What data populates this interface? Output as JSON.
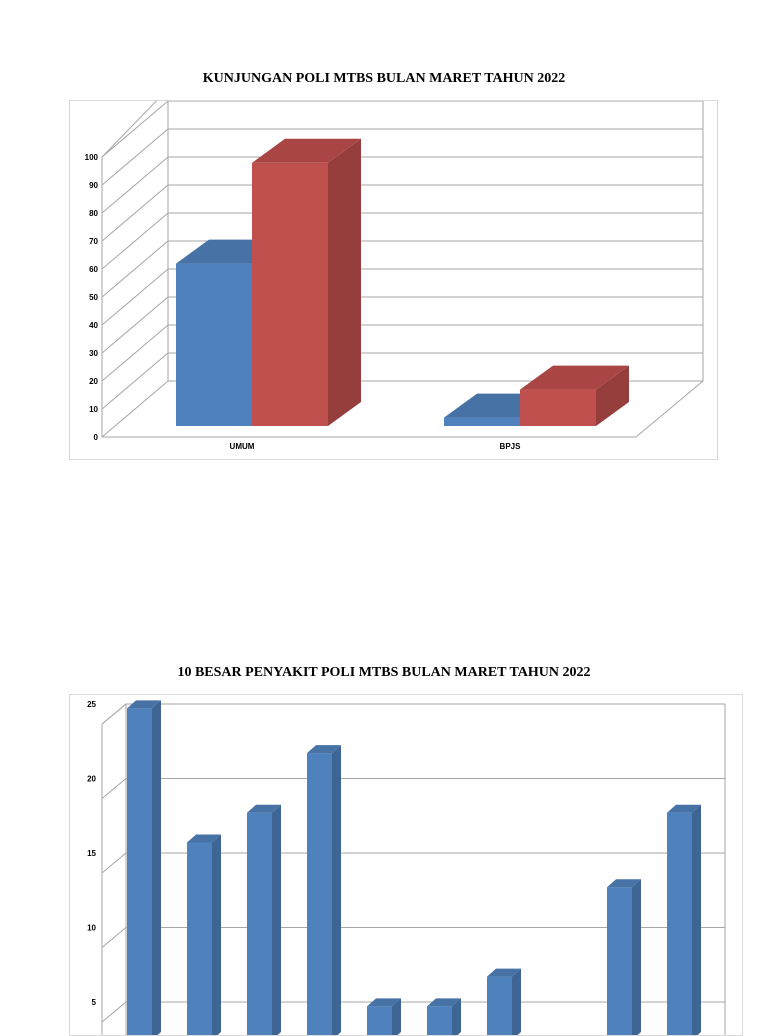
{
  "chart_data": [
    {
      "type": "bar",
      "title": "KUNJUNGAN POLI MTBS BULAN MARET TAHUN 2022",
      "categories": [
        "UMUM",
        "BPJS"
      ],
      "series": [
        {
          "values": [
            58,
            3
          ],
          "color": "#4f81bd"
        },
        {
          "values": [
            94,
            13
          ],
          "color": "#c0504d"
        }
      ],
      "ylim": [
        0,
        100
      ],
      "yticks": [
        0,
        10,
        20,
        30,
        40,
        50,
        60,
        70,
        80,
        90,
        100
      ],
      "grid": true,
      "legend": "none"
    },
    {
      "type": "bar",
      "title": "10 BESAR PENYAKIT POLI MTBS BULAN MARET TAHUN 2022",
      "categories": [
        "",
        "",
        "",
        "",
        "",
        "",
        "",
        "",
        "",
        ""
      ],
      "series": [
        {
          "values": [
            24,
            15,
            17,
            21,
            4,
            4,
            6,
            0,
            12,
            17
          ],
          "color": "#4f81bd"
        }
      ],
      "ylim": [
        0,
        25
      ],
      "yticks": [
        5,
        10,
        15,
        20,
        25
      ],
      "grid": true,
      "legend": "none"
    }
  ]
}
